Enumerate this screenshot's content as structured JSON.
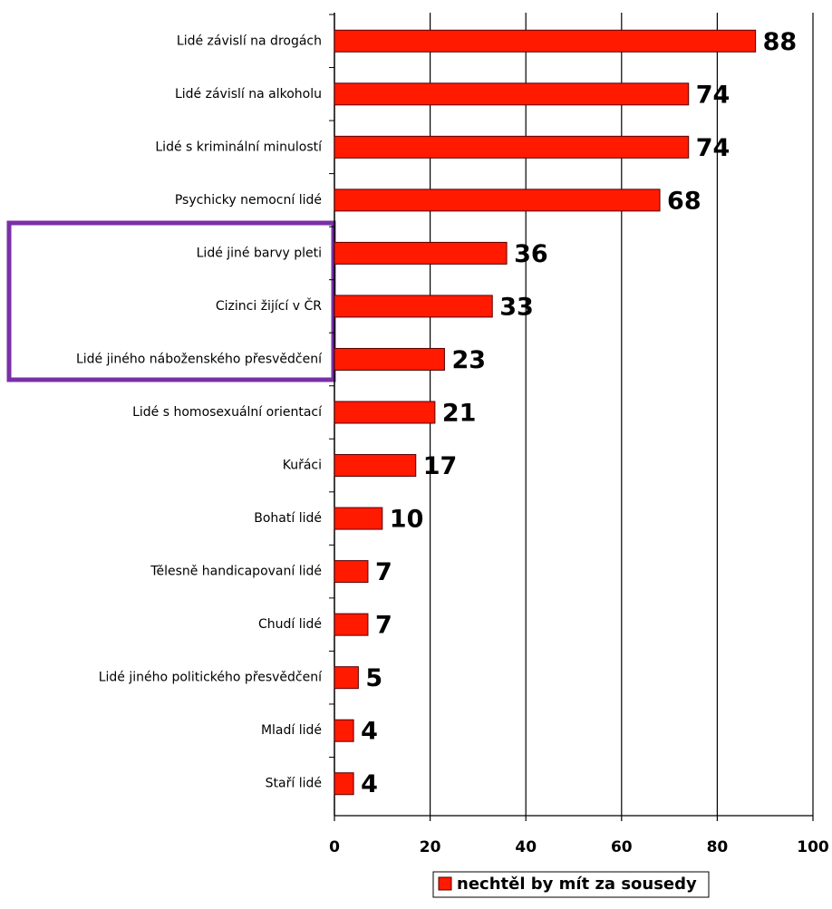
{
  "chart_data": {
    "type": "bar",
    "orientation": "horizontal",
    "categories": [
      "Lidé závislí na drogách",
      "Lidé závislí na alkoholu",
      "Lidé s kriminální minulostí",
      "Psychicky nemocní lidé",
      "Lidé jiné barvy pleti",
      "Cizinci žijící v ČR",
      "Lidé jiného náboženského přesvědčení",
      "Lidé s homosexuální orientací",
      "Kuřáci",
      "Bohatí lidé",
      "Tělesně handicapovaní lidé",
      "Chudí lidé",
      "Lidé jiného politického přesvědčení",
      "Mladí lidé",
      "Staří lidé"
    ],
    "series": [
      {
        "name": "nechtěl by mít za sousedy",
        "color": "#ff1a00",
        "values": [
          88,
          74,
          74,
          68,
          36,
          33,
          23,
          21,
          17,
          10,
          7,
          7,
          5,
          4,
          4
        ]
      }
    ],
    "xlim": [
      0,
      100
    ],
    "xticks": [
      0,
      20,
      40,
      60,
      80,
      100
    ],
    "grid": true,
    "legend": "bottom"
  }
}
